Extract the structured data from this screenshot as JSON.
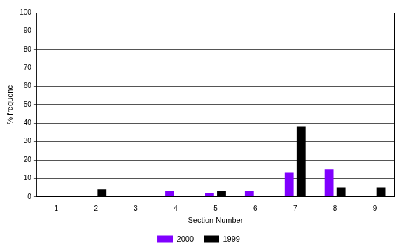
{
  "chart_data": {
    "type": "bar",
    "x_label": "Section Number",
    "y_label": "% frequenc",
    "categories": [
      "1",
      "2",
      "3",
      "4",
      "5",
      "6",
      "7",
      "8",
      "9"
    ],
    "series": [
      {
        "name": "2000",
        "color": "#8000ff",
        "values": [
          0,
          0,
          0,
          3,
          2,
          3,
          13,
          15,
          0
        ]
      },
      {
        "name": "1999",
        "color": "#000000",
        "values": [
          0,
          4,
          0,
          0,
          3,
          0,
          38,
          5,
          5
        ]
      }
    ],
    "ylim": [
      0,
      100
    ],
    "yticks": [
      0,
      10,
      20,
      30,
      40,
      50,
      60,
      70,
      80,
      90,
      100
    ],
    "grid": true,
    "legend": "bottom"
  }
}
